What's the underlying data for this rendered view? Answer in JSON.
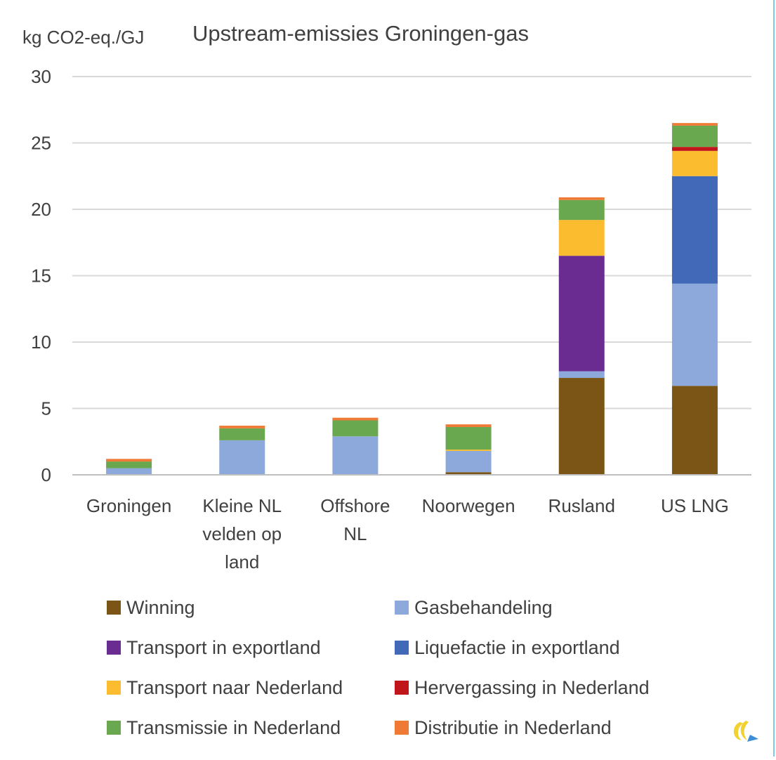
{
  "chart_data": {
    "type": "bar",
    "stacked": true,
    "title": "Upstream-emissies Groningen-gas",
    "ylabel": "kg CO2-eq./GJ",
    "xlabel": "",
    "ylim": [
      0,
      30
    ],
    "yticks": [
      0,
      5,
      10,
      15,
      20,
      25,
      30
    ],
    "grid": true,
    "legend_position": "bottom",
    "categories": [
      [
        "Groningen"
      ],
      [
        "Kleine NL",
        "velden op",
        "land"
      ],
      [
        "Offshore",
        "NL"
      ],
      [
        "Noorwegen"
      ],
      [
        "Rusland"
      ],
      [
        "US LNG"
      ]
    ],
    "series": [
      {
        "name": "Winning",
        "color": "#7a5516",
        "values": [
          0.0,
          0.0,
          0.0,
          0.2,
          7.3,
          6.7
        ]
      },
      {
        "name": "Gasbehandeling",
        "color": "#8da9db",
        "values": [
          0.5,
          2.6,
          2.9,
          1.6,
          0.5,
          7.7
        ]
      },
      {
        "name": "Transport in exportland",
        "color": "#6a2c91",
        "values": [
          0.0,
          0.0,
          0.0,
          0.0,
          8.7,
          0.0
        ]
      },
      {
        "name": "Liquefactie in exportland",
        "color": "#4169b8",
        "values": [
          0.0,
          0.0,
          0.0,
          0.0,
          0.0,
          8.1
        ]
      },
      {
        "name": "Transport naar Nederland",
        "color": "#fbbc30",
        "values": [
          0.0,
          0.0,
          0.0,
          0.1,
          2.7,
          1.9
        ]
      },
      {
        "name": "Hervergassing in Nederland",
        "color": "#c0161b",
        "values": [
          0.0,
          0.0,
          0.0,
          0.0,
          0.0,
          0.3
        ]
      },
      {
        "name": "Transmissie in Nederland",
        "color": "#6aa84f",
        "values": [
          0.5,
          0.9,
          1.2,
          1.7,
          1.5,
          1.6
        ]
      },
      {
        "name": "Distributie in Nederland",
        "color": "#ee7a35",
        "values": [
          0.2,
          0.2,
          0.2,
          0.2,
          0.2,
          0.2
        ]
      }
    ]
  },
  "colors": {
    "text": "#404040",
    "grid": "#d9d9d9",
    "axis": "#bfbfbf",
    "border_accent": "#7fc8e8",
    "logo_yellow": "#f2d230",
    "logo_blue": "#3f8fd6"
  },
  "icons": {
    "logo": "brand-logo-icon"
  }
}
